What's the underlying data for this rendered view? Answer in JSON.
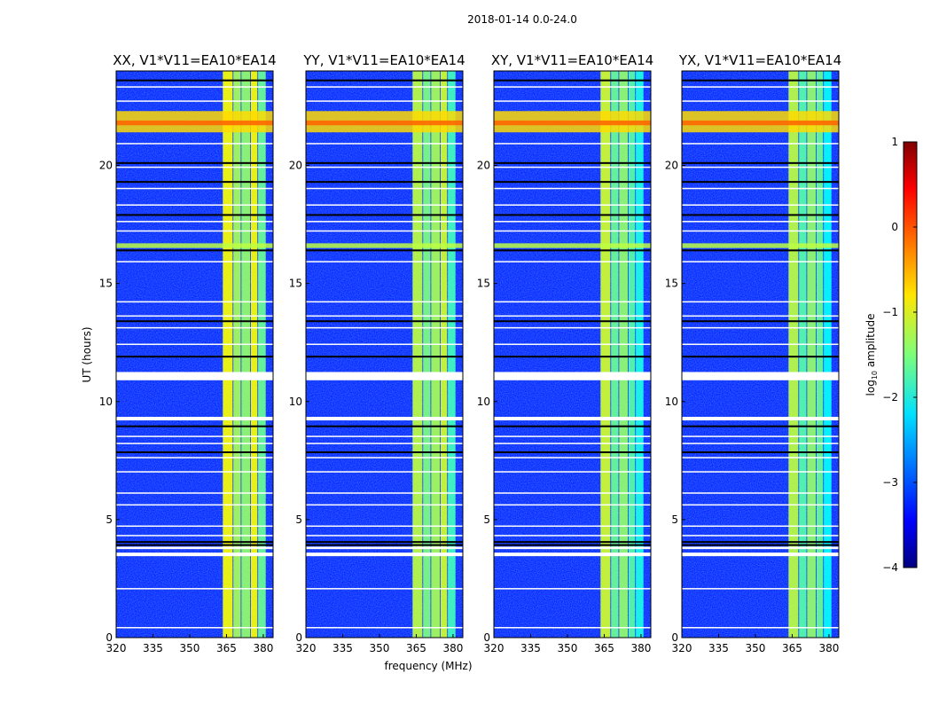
{
  "chart_data": {
    "type": "heatmap",
    "title": "2018-01-14 0.0-24.0",
    "xlabel": "frequency (MHz)",
    "ylabel": "UT (hours)",
    "xlim": [
      320,
      384
    ],
    "ylim": [
      0,
      24
    ],
    "xticks": [
      "320",
      "335",
      "350",
      "365",
      "380"
    ],
    "xtick_values": [
      320,
      335,
      350,
      365,
      380
    ],
    "yticks": [
      "0",
      "5",
      "10",
      "15",
      "20"
    ],
    "ytick_values": [
      0,
      5,
      10,
      15,
      20
    ],
    "background_level": -3.3,
    "panels": [
      {
        "title": "XX, V1*V11=EA10*EA14",
        "band_levels": [
          -0.9,
          -1.3,
          -1.4,
          -0.9,
          -1.6
        ]
      },
      {
        "title": "YY, V1*V11=EA10*EA14",
        "band_levels": [
          -1.2,
          -1.5,
          -1.3,
          -1.1,
          -1.8
        ]
      },
      {
        "title": "XY, V1*V11=EA10*EA14",
        "band_levels": [
          -1.1,
          -1.6,
          -1.4,
          -1.7,
          -2.0
        ]
      },
      {
        "title": "YX, V1*V11=EA10*EA14",
        "band_levels": [
          -1.2,
          -1.7,
          -1.4,
          -1.6,
          -2.1
        ]
      }
    ],
    "channel_bands_mhz": [
      [
        363.5,
        367.5
      ],
      [
        367.8,
        370.8
      ],
      [
        371.1,
        374.6
      ],
      [
        374.9,
        377.6
      ],
      [
        377.9,
        381.0
      ]
    ],
    "rfi_rows": [
      {
        "hours": [
          21.4,
          22.3
        ],
        "level": -0.7
      },
      {
        "hours": [
          21.7,
          21.9
        ],
        "level": -0.1
      },
      {
        "hours": [
          16.5,
          16.7
        ],
        "level": -1.2
      }
    ],
    "flagged_hours": [
      [
        3.45,
        3.6
      ],
      [
        3.75,
        3.85
      ],
      [
        9.2,
        9.35
      ],
      [
        10.9,
        11.25
      ],
      [
        0.4,
        0.45
      ],
      [
        2.05,
        2.1
      ],
      [
        4.3,
        4.35
      ],
      [
        4.7,
        4.75
      ],
      [
        5.6,
        5.65
      ],
      [
        6.1,
        6.15
      ],
      [
        7.0,
        7.05
      ],
      [
        7.6,
        7.65
      ],
      [
        8.2,
        8.25
      ],
      [
        8.5,
        8.55
      ],
      [
        12.4,
        12.45
      ],
      [
        13.1,
        13.15
      ],
      [
        13.6,
        13.65
      ],
      [
        14.2,
        14.25
      ],
      [
        15.9,
        15.95
      ],
      [
        17.2,
        17.25
      ],
      [
        17.6,
        17.65
      ],
      [
        18.3,
        18.35
      ],
      [
        19.0,
        19.05
      ],
      [
        19.9,
        19.95
      ],
      [
        20.9,
        20.95
      ],
      [
        22.7,
        22.75
      ],
      [
        23.3,
        23.35
      ]
    ],
    "dark_rows_hours": [
      3.92,
      4.05,
      7.85,
      8.95,
      11.9,
      13.4,
      16.4,
      17.9,
      19.3,
      20.1,
      23.6
    ],
    "colorbar": {
      "label": "log10 amplitude",
      "range": [
        -4,
        1
      ],
      "ticks": [
        "1",
        "0",
        "−1",
        "−2",
        "−3",
        "−4"
      ],
      "tick_values": [
        1,
        0,
        -1,
        -2,
        -3,
        -4
      ],
      "colormap": "jet"
    }
  }
}
